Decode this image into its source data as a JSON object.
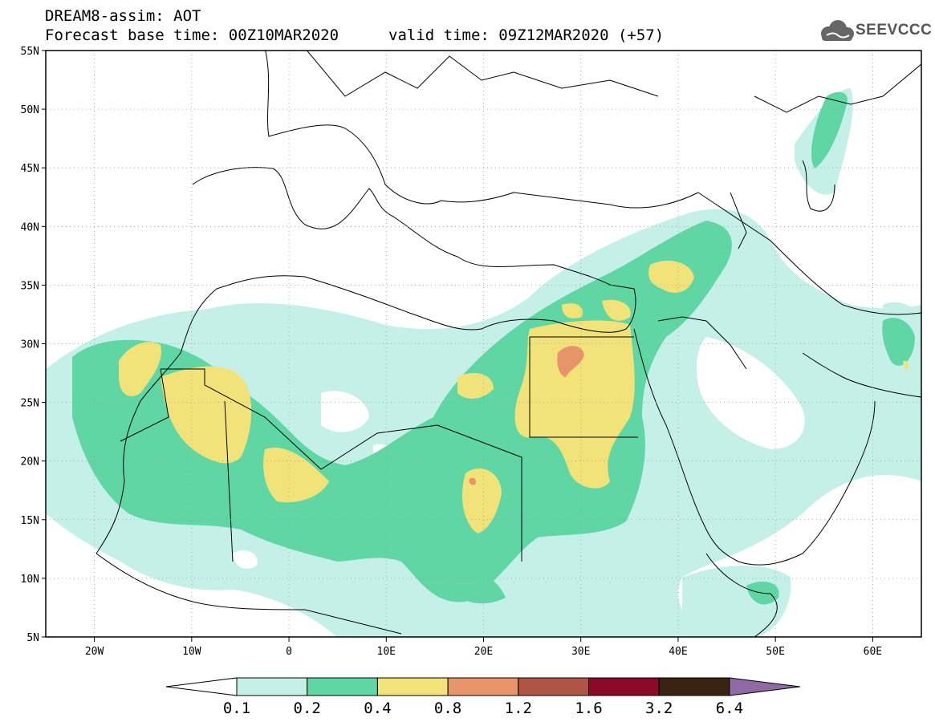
{
  "header": {
    "title": "DREAM8-assim: AOT",
    "base_time": "Forecast base time: 00Z10MAR2020",
    "valid_time": "valid time: 09Z12MAR2020 (+57)",
    "logo_text": "SEEVCCC",
    "logo_icon": "cloud-icon"
  },
  "map": {
    "lat_labels": [
      "55N",
      "50N",
      "45N",
      "40N",
      "35N",
      "30N",
      "25N",
      "20N",
      "15N",
      "10N",
      "5N"
    ],
    "lon_labels": [
      "20W",
      "10W",
      "0",
      "10E",
      "20E",
      "30E",
      "40E",
      "50E",
      "60E"
    ],
    "lat_values": [
      55,
      50,
      45,
      40,
      35,
      30,
      25,
      20,
      15,
      10,
      5
    ],
    "lon_values": [
      -20,
      -10,
      0,
      10,
      20,
      30,
      40,
      50,
      60
    ],
    "extent": {
      "lon": [
        -25,
        65
      ],
      "lat": [
        5,
        55
      ]
    },
    "grid": "dotted"
  },
  "colorbar": {
    "labels": [
      "0.1",
      "0.2",
      "0.4",
      "0.8",
      "1.2",
      "1.6",
      "3.2",
      "6.4"
    ],
    "colors": [
      "#ffffff",
      "#c4f0e8",
      "#5fd6a4",
      "#f2e27a",
      "#e8946a",
      "#b05545",
      "#8a0a2a",
      "#3b2312",
      "#8f6aa6"
    ]
  }
}
